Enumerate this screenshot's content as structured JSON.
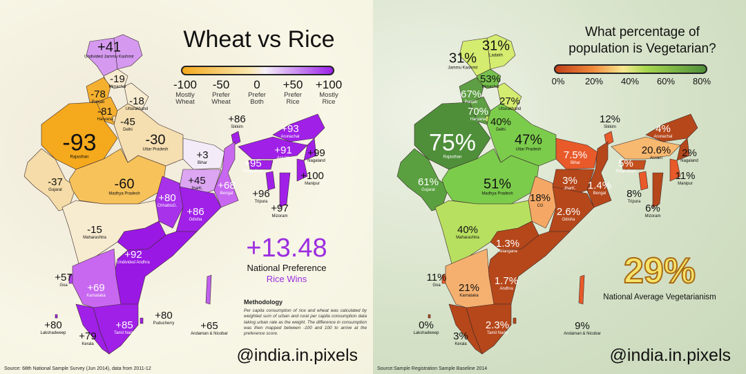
{
  "left": {
    "title": "Wheat vs Rice",
    "legend": [
      {
        "value": "-100",
        "label1": "Mostly",
        "label2": "Wheat"
      },
      {
        "value": "-50",
        "label1": "Prefer",
        "label2": "Wheat"
      },
      {
        "value": "0",
        "label1": "Prefer",
        "label2": "Both"
      },
      {
        "value": "+50",
        "label1": "Prefer",
        "label2": "Rice"
      },
      {
        "value": "+100",
        "label1": "Mostly",
        "label2": "Rice"
      }
    ],
    "national_value": "+13.48",
    "national_label": "National Preference",
    "national_verdict": "Rice Wins",
    "methodology_title": "Methodology",
    "methodology_text": "Per capita consumption of rice and wheat was calculated by weighted sum of urban and rural per capita consumption data taking urban rate as the weight. The difference in consumption was then mapped between -100 and 100 to arrive at the preference score.",
    "handle": "@india.in.pixels",
    "source": "Source: 68th National Sample Survey (Jun 2014), data from 2011-12",
    "colors": {
      "accent": "#9b2ee0"
    },
    "regions": [
      {
        "id": "jk",
        "value": "+41",
        "name": "Undivided Jammu Kashmir",
        "color": "#d59af0"
      },
      {
        "id": "ladakh",
        "value": "",
        "name": "",
        "color": "#d59af0"
      },
      {
        "id": "hp",
        "value": "-19",
        "name": "Himachal",
        "color": "#f7ebd0"
      },
      {
        "id": "pb",
        "value": "-78",
        "name": "Punjab",
        "color": "#f5b030"
      },
      {
        "id": "uk",
        "value": "-18",
        "name": "Uttarakhand",
        "color": "#f7ebd0"
      },
      {
        "id": "hr",
        "value": "-81",
        "name": "Haryana",
        "color": "#f5b030"
      },
      {
        "id": "dl",
        "value": "-45",
        "name": "Delhi",
        "color": "#f5dca8"
      },
      {
        "id": "rj",
        "value": "-93",
        "name": "Rajasthan",
        "color": "#f5a91c"
      },
      {
        "id": "up",
        "value": "-30",
        "name": "Uttar Pradesh",
        "color": "#f5deb0"
      },
      {
        "id": "gj",
        "value": "-37",
        "name": "Gujarat",
        "color": "#f5dca8"
      },
      {
        "id": "mp",
        "value": "-60",
        "name": "Madhya Pradesh",
        "color": "#f7c25a"
      },
      {
        "id": "br",
        "value": "+3",
        "name": "Bihar",
        "color": "#f3ecf8"
      },
      {
        "id": "sk",
        "value": "+86",
        "name": "Sikkim",
        "color": "#a020e8"
      },
      {
        "id": "ar",
        "value": "+93",
        "name": "Arunachal",
        "color": "#a020e8"
      },
      {
        "id": "as",
        "value": "+91",
        "name": "Assam",
        "color": "#a020e8"
      },
      {
        "id": "ml",
        "value": "+95",
        "name": "Meghalaya",
        "color": "#a020e8"
      },
      {
        "id": "nl",
        "value": "+99",
        "name": "Nagaland",
        "color": "#a020e8"
      },
      {
        "id": "mn",
        "value": "+100",
        "name": "Manipur",
        "color": "#a020e8"
      },
      {
        "id": "tr",
        "value": "+96",
        "name": "Tripura",
        "color": "#a020e8"
      },
      {
        "id": "mz",
        "value": "+97",
        "name": "Mizoram",
        "color": "#a020e8"
      },
      {
        "id": "jh",
        "value": "+45",
        "name": "JharK.",
        "color": "#dca6f2"
      },
      {
        "id": "wb",
        "value": "+68",
        "name": "Bengal",
        "color": "#c868f0"
      },
      {
        "id": "cg",
        "value": "+80",
        "name": "ChhattisG.",
        "color": "#a832ea"
      },
      {
        "id": "od",
        "value": "+86",
        "name": "Odisha",
        "color": "#a020e8"
      },
      {
        "id": "mh",
        "value": "-15",
        "name": "Maharashtra",
        "color": "#f7ebd0"
      },
      {
        "id": "tg",
        "value": "",
        "name": "",
        "color": "#9a18e4"
      },
      {
        "id": "ap",
        "value": "+92",
        "name": "Undivided Andhra",
        "color": "#9a18e4"
      },
      {
        "id": "ga",
        "value": "+57",
        "name": "Goa",
        "color": "#b040ec"
      },
      {
        "id": "ka",
        "value": "+69",
        "name": "Karnataka",
        "color": "#c868f0"
      },
      {
        "id": "py",
        "value": "+80",
        "name": "Puducherry",
        "color": "#a020e8"
      },
      {
        "id": "tn",
        "value": "+85",
        "name": "Tamil Nadu",
        "color": "#a020e8"
      },
      {
        "id": "ld",
        "value": "+80",
        "name": "Lakshadweep",
        "color": "#a020e8"
      },
      {
        "id": "kl",
        "value": "+79",
        "name": "Kerala",
        "color": "#a020e8"
      },
      {
        "id": "an",
        "value": "+65",
        "name": "Andaman & Nicobar",
        "color": "#c060ee"
      }
    ]
  },
  "right": {
    "title_line1": "What percentage of",
    "title_line2": "population is Vegetarian?",
    "legend": [
      {
        "value": "0%"
      },
      {
        "value": "20%"
      },
      {
        "value": "40%"
      },
      {
        "value": "60%"
      },
      {
        "value": "80%"
      }
    ],
    "national_value": "29%",
    "national_label": "National Average Vegetarianism",
    "handle": "@india.in.pixels",
    "source": "Source:Sample Registration Sample Baseline 2014",
    "colors": {
      "accent": "#f7e36a"
    },
    "regions": [
      {
        "id": "jk",
        "value": "31%",
        "name": "Jammu Kashmir",
        "color": "#d4ec70"
      },
      {
        "id": "ladakh",
        "value": "31%",
        "name": "Ladakh",
        "color": "#d4ec70"
      },
      {
        "id": "hp",
        "value": "53%",
        "name": "Himachal",
        "color": "#76c04e"
      },
      {
        "id": "pb",
        "value": "67%",
        "name": "Punjab",
        "color": "#5e9e44"
      },
      {
        "id": "uk",
        "value": "27%",
        "name": "Uttarakhand",
        "color": "#d4ec70"
      },
      {
        "id": "hr",
        "value": "70%",
        "name": "Haryana",
        "color": "#5e9e44"
      },
      {
        "id": "dl",
        "value": "40%",
        "name": "Delhi",
        "color": "#b8e060"
      },
      {
        "id": "rj",
        "value": "75%",
        "name": "Rajasthan",
        "color": "#4f8f3a"
      },
      {
        "id": "up",
        "value": "47%",
        "name": "Uttar Pradesh",
        "color": "#7ccc4c"
      },
      {
        "id": "gj",
        "value": "61%",
        "name": "Gujarat",
        "color": "#5aa040"
      },
      {
        "id": "mp",
        "value": "51%",
        "name": "Madhya Pradesh",
        "color": "#7ccc4c"
      },
      {
        "id": "br",
        "value": "7.5%",
        "name": "Bihar",
        "color": "#e85a2a"
      },
      {
        "id": "sk",
        "value": "12%",
        "name": "Sikkim",
        "color": "#e85a2a"
      },
      {
        "id": "ar",
        "value": "4%",
        "name": "Arunachal",
        "color": "#b5471a"
      },
      {
        "id": "as",
        "value": "20.6%",
        "name": "Assam",
        "color": "#f7b870"
      },
      {
        "id": "ml",
        "value": "5%",
        "name": "Meghalaya",
        "color": "#c4501e"
      },
      {
        "id": "nl",
        "value": "2%",
        "name": "Nagaland",
        "color": "#b5471a"
      },
      {
        "id": "mn",
        "value": "11%",
        "name": "Manipur",
        "color": "#e85a2a"
      },
      {
        "id": "tr",
        "value": "8%",
        "name": "Tripura",
        "color": "#e85a2a"
      },
      {
        "id": "mz",
        "value": "6%",
        "name": "Mizoram",
        "color": "#b5471a"
      },
      {
        "id": "jh",
        "value": "3%",
        "name": "JharK.",
        "color": "#b5471a"
      },
      {
        "id": "wb",
        "value": "1.4%",
        "name": "Bengal",
        "color": "#b5471a"
      },
      {
        "id": "cg",
        "value": "18%",
        "name": "CG",
        "color": "#f5a865"
      },
      {
        "id": "od",
        "value": "2.6%",
        "name": "Odisha",
        "color": "#b5471a"
      },
      {
        "id": "mh",
        "value": "40%",
        "name": "Maharashtra",
        "color": "#b8e060"
      },
      {
        "id": "tg",
        "value": "1.3%",
        "name": "Telangana",
        "color": "#b5471a"
      },
      {
        "id": "ap",
        "value": "1.7%",
        "name": "Andhra",
        "color": "#b5471a"
      },
      {
        "id": "ga",
        "value": "11%",
        "name": "Goa",
        "color": "#e85a2a"
      },
      {
        "id": "ka",
        "value": "21%",
        "name": "Karnataka",
        "color": "#f5b070"
      },
      {
        "id": "py",
        "value": "",
        "name": "",
        "color": "#b5471a"
      },
      {
        "id": "tn",
        "value": "2.3%",
        "name": "Tamil Nadu",
        "color": "#b5471a"
      },
      {
        "id": "ld",
        "value": "0%",
        "name": "Lakshadweep",
        "color": "#b5471a"
      },
      {
        "id": "kl",
        "value": "3%",
        "name": "Kerala",
        "color": "#b5471a"
      },
      {
        "id": "an",
        "value": "9%",
        "name": "Andaman & Nicobar",
        "color": "#e85a2a"
      }
    ]
  }
}
